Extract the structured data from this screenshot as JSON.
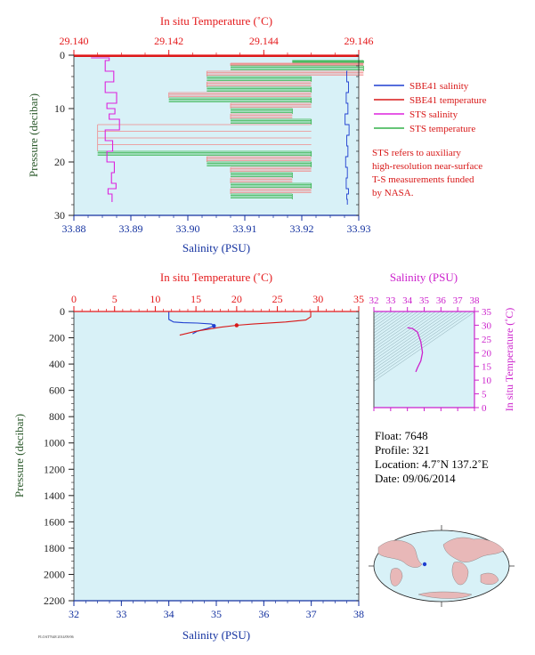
{
  "colors": {
    "background": "#d8f1f7",
    "temperature": "#e41a1c",
    "salinity_axis": "#1432a0",
    "sbe_salinity": "#1f3fd0",
    "sbe_temperature": "#d81818",
    "sts_salinity": "#dd22dd",
    "sts_temperature": "#33b24a",
    "sts_temp_alt": "#f08a8a",
    "pressure_label": "#2c5a2c",
    "ts_axis": "#cc22cc"
  },
  "top_panel": {
    "top_axis_title": "In situ Temperature (˚C)",
    "bottom_axis_title": "Salinity (PSU)",
    "y_axis_title": "Pressure (decibar)",
    "temp_ticks": [
      "29.140",
      "29.142",
      "29.144",
      "29.146"
    ],
    "sal_ticks": [
      "33.88",
      "33.89",
      "33.90",
      "33.91",
      "33.92",
      "33.93"
    ],
    "pres_ticks": [
      "0",
      "10",
      "20",
      "30"
    ],
    "legend": [
      {
        "label": "SBE41 salinity",
        "color": "#1f3fd0"
      },
      {
        "label": "SBE41 temperature",
        "color": "#d81818"
      },
      {
        "label": "STS salinity",
        "color": "#dd22dd"
      },
      {
        "label": "STS temperature",
        "color": "#33b24a"
      }
    ],
    "note_lines": [
      "STS refers to auxiliary",
      "high-resolution near-surface",
      "T-S measurements funded",
      "by NASA."
    ]
  },
  "bottom_panel": {
    "top_axis_title": "In situ Temperature (˚C)",
    "bottom_axis_title": "Salinity (PSU)",
    "y_axis_title": "Pressure (decibar)",
    "temp_ticks": [
      "0",
      "5",
      "10",
      "15",
      "20",
      "25",
      "30",
      "35"
    ],
    "sal_ticks": [
      "32",
      "33",
      "34",
      "35",
      "36",
      "37",
      "38"
    ],
    "pres_ticks": [
      "0",
      "200",
      "400",
      "600",
      "800",
      "1000",
      "1200",
      "1400",
      "1600",
      "1800",
      "2000",
      "2200"
    ]
  },
  "ts_diagram": {
    "top_axis_title": "Salinity (PSU)",
    "right_axis_title": "In situ Temperature (˚C)",
    "sal_ticks": [
      "32",
      "33",
      "34",
      "35",
      "36",
      "37",
      "38"
    ],
    "temp_ticks": [
      "0",
      "5",
      "10",
      "15",
      "20",
      "25",
      "30",
      "35"
    ]
  },
  "float_info": {
    "float": "Float:  7648",
    "profile": "Profile:  321",
    "location": "Location:  4.7˚N  137.2˚E",
    "date": "Date:  09/06/2014"
  },
  "footer_tiny": "FLOAT7648 2014/09/06",
  "chart_data": [
    {
      "type": "line",
      "title": "",
      "xlabel": "Salinity (PSU)",
      "x2label": "In situ Temperature (˚C)",
      "ylabel": "Pressure (decibar)",
      "xlim": [
        33.88,
        33.93
      ],
      "x2lim": [
        29.14,
        29.146
      ],
      "ylim": [
        30,
        0
      ],
      "series": [
        {
          "name": "SBE41 salinity",
          "x": [
            33.928,
            33.9279,
            33.9282,
            33.9278,
            33.9281,
            33.9276,
            33.9283,
            33.9279,
            33.9281,
            33.9277,
            33.928,
            33.9278,
            33.9282,
            33.9279,
            33.928
          ],
          "y": [
            3,
            5,
            7,
            9,
            11,
            13,
            15,
            17,
            19,
            21,
            23,
            25,
            26,
            27,
            28
          ]
        },
        {
          "name": "SBE41 temperature",
          "x": [
            29.14,
            29.1461
          ],
          "y": [
            0.2,
            0.2
          ]
        },
        {
          "name": "STS salinity",
          "x": [
            33.883,
            33.8862,
            33.8855,
            33.887,
            33.8855,
            33.8875,
            33.8858,
            33.8872,
            33.8862,
            33.888,
            33.8855,
            33.8868,
            33.8858,
            33.8871,
            33.8866,
            33.8874,
            33.886,
            33.8867
          ],
          "y": [
            0.5,
            1,
            3,
            5,
            7,
            9,
            10,
            11,
            12,
            14,
            16,
            18,
            20,
            22,
            24,
            25,
            26,
            27.5
          ]
        },
        {
          "name": "STS temperature",
          "x": [
            29.1446,
            29.1461,
            29.1433,
            29.1461,
            29.1428,
            29.145,
            29.1428,
            29.145,
            29.142,
            29.145,
            29.1433,
            29.1446,
            29.1433,
            29.145,
            29.1405,
            29.145,
            29.1428,
            29.145,
            29.1433,
            29.1446,
            29.1433,
            29.145,
            29.1433,
            29.1446
          ],
          "y": [
            1,
            1.5,
            2,
            3,
            4,
            5,
            6,
            7,
            8,
            9,
            10,
            11,
            12,
            13,
            18,
            19,
            20,
            21,
            22,
            23,
            24,
            25,
            26,
            27
          ]
        }
      ]
    },
    {
      "type": "line",
      "title": "",
      "xlabel": "Salinity (PSU)",
      "x2label": "In situ Temperature (˚C)",
      "ylabel": "Pressure (decibar)",
      "xlim": [
        32,
        38
      ],
      "x2lim": [
        0,
        35
      ],
      "ylim": [
        2200,
        0
      ],
      "series": [
        {
          "name": "SBE41 salinity",
          "x": [
            34.0,
            34.0,
            34.1,
            34.3,
            34.6,
            34.9,
            34.95,
            34.8,
            34.6,
            34.5
          ],
          "y": [
            0,
            60,
            80,
            85,
            88,
            95,
            110,
            130,
            150,
            170
          ]
        },
        {
          "name": "SBE41 temperature",
          "x": [
            29.1,
            29.1,
            28.5,
            26.0,
            22.0,
            20.0,
            18.0,
            15.0,
            13.0
          ],
          "y": [
            0,
            40,
            65,
            80,
            95,
            105,
            120,
            150,
            180
          ]
        }
      ]
    },
    {
      "type": "scatter",
      "title": "",
      "xlabel": "Salinity (PSU)",
      "ylabel": "In situ Temperature (˚C)",
      "xlim": [
        32,
        38
      ],
      "ylim": [
        0,
        35
      ],
      "series": [
        {
          "name": "SBE41",
          "x": [
            34.0,
            34.3,
            34.6,
            34.8,
            34.9,
            34.8,
            34.6,
            34.5
          ],
          "y": [
            29.1,
            28.8,
            27.5,
            24,
            20,
            17,
            14.5,
            13
          ]
        }
      ]
    }
  ]
}
